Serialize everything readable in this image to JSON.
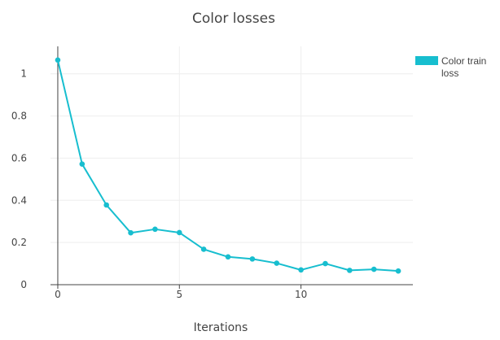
{
  "chart_data": {
    "type": "line",
    "title": "Color losses",
    "xlabel": "Iterations",
    "ylabel": "",
    "xlim": [
      -0.3,
      14.6
    ],
    "ylim": [
      0,
      1.13
    ],
    "xticks": [
      0,
      5,
      10
    ],
    "xtick_labels": [
      "0",
      "5",
      "10"
    ],
    "yticks": [
      0,
      0.2,
      0.4,
      0.6,
      0.8,
      1
    ],
    "ytick_labels": [
      "0",
      "0.2",
      "0.4",
      "0.6",
      "0.8",
      "1"
    ],
    "grid": true,
    "legend_position": "top-right",
    "series": [
      {
        "name": "Color train loss",
        "name_lines": [
          "Color train",
          "loss"
        ],
        "color": "#17becf",
        "x": [
          0,
          1,
          2,
          3,
          4,
          5,
          6,
          7,
          8,
          9,
          10,
          11,
          12,
          13,
          14
        ],
        "y": [
          1.065,
          0.572,
          0.378,
          0.246,
          0.263,
          0.247,
          0.168,
          0.132,
          0.122,
          0.102,
          0.07,
          0.1,
          0.068,
          0.073,
          0.065
        ]
      }
    ]
  }
}
